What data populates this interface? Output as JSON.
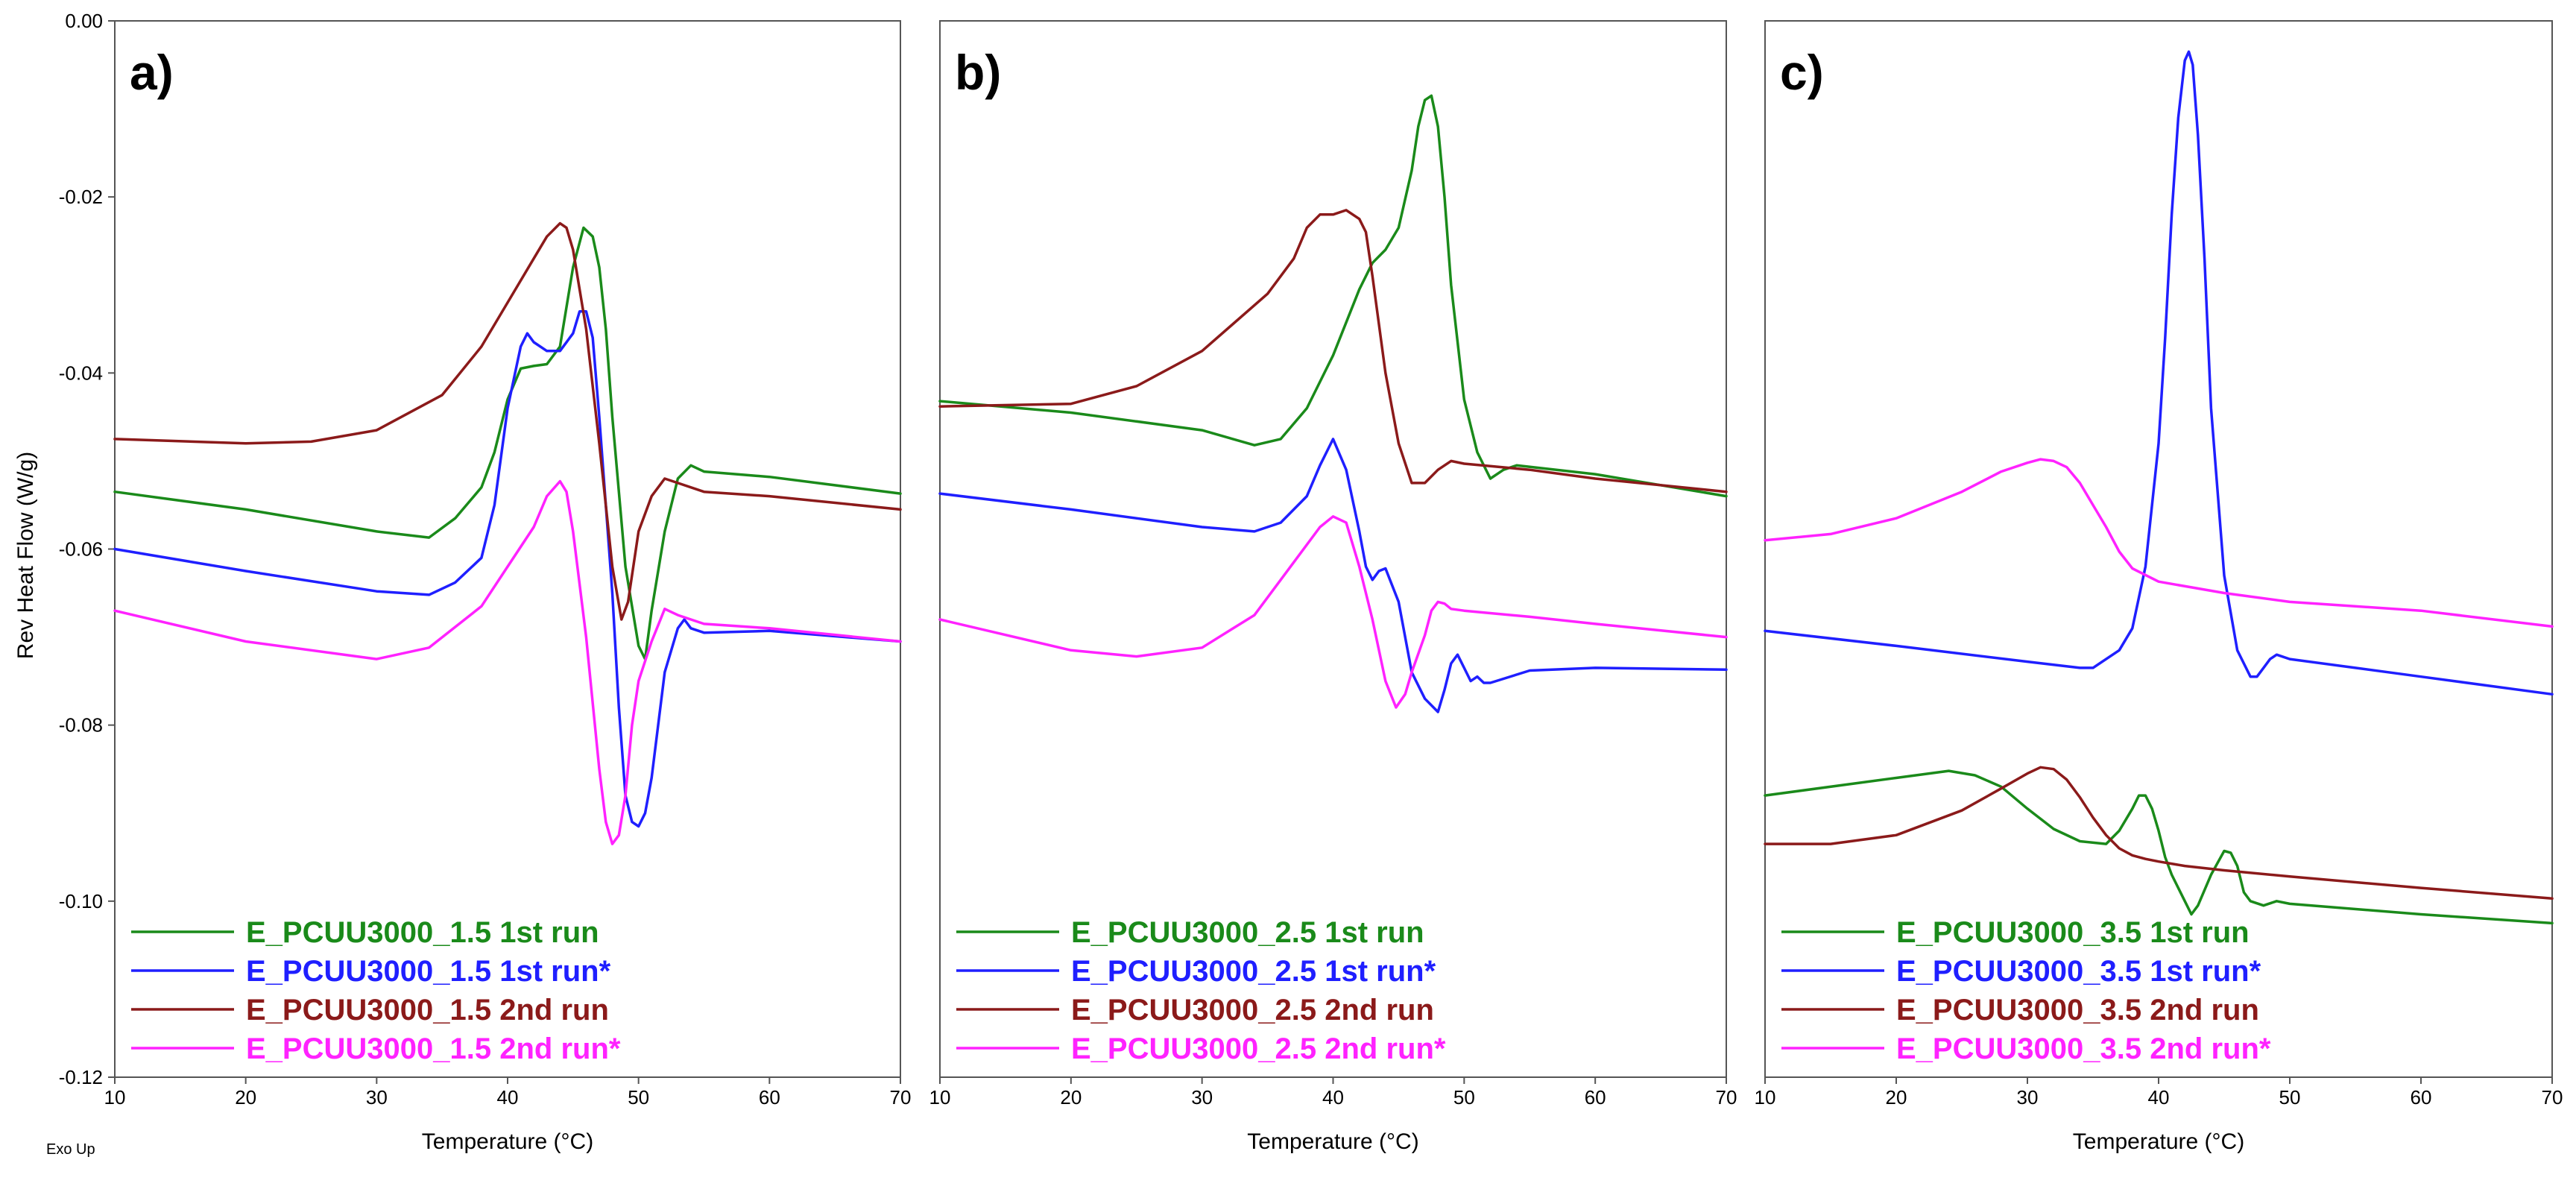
{
  "figure": {
    "ylabel": "Rev Heat Flow (W/g)",
    "exo_label": "Exo Up"
  },
  "colors": {
    "green": "#1a8a1a",
    "blue": "#1f1fff",
    "darkred": "#8b1a1a",
    "magenta": "#ff22ff"
  },
  "chart_data": [
    {
      "type": "line",
      "panel_label": "a)",
      "xlabel": "Temperature (°C)",
      "ylabel": "Rev Heat Flow (W/g)",
      "xlim": [
        10,
        70
      ],
      "ylim": [
        -0.12,
        0.0
      ],
      "xticks": [
        "10",
        "20",
        "30",
        "40",
        "50",
        "60",
        "70"
      ],
      "yticks": [
        "0.00",
        "-0.02",
        "-0.04",
        "-0.06",
        "-0.08",
        "-0.10",
        "-0.12"
      ],
      "legend": "bottom-left",
      "series": [
        {
          "name": "E_PCUU3000_1.5 1st run",
          "color": "green",
          "x": [
            10,
            20,
            30,
            34,
            36,
            38,
            39,
            40,
            41,
            42,
            43,
            44,
            45,
            45.8,
            46.5,
            47,
            47.5,
            48,
            49,
            50,
            50.5,
            51,
            52,
            53,
            54,
            55,
            60,
            70
          ],
          "y": [
            -0.0535,
            -0.0555,
            -0.058,
            -0.0587,
            -0.0565,
            -0.053,
            -0.049,
            -0.043,
            -0.0395,
            -0.0392,
            -0.039,
            -0.037,
            -0.028,
            -0.0235,
            -0.0245,
            -0.028,
            -0.035,
            -0.045,
            -0.062,
            -0.071,
            -0.0725,
            -0.067,
            -0.058,
            -0.052,
            -0.0505,
            -0.0512,
            -0.0518,
            -0.0537
          ]
        },
        {
          "name": "E_PCUU3000_1.5 1st run*",
          "color": "blue",
          "x": [
            10,
            20,
            30,
            34,
            36,
            38,
            39,
            40,
            41,
            41.5,
            42,
            43,
            44,
            45,
            45.5,
            46,
            46.5,
            47,
            48,
            48.5,
            49,
            49.5,
            50,
            50.5,
            51,
            51.5,
            52,
            53,
            53.5,
            54,
            55,
            60,
            70
          ],
          "y": [
            -0.06,
            -0.0625,
            -0.0648,
            -0.0652,
            -0.0638,
            -0.061,
            -0.055,
            -0.044,
            -0.037,
            -0.0355,
            -0.0365,
            -0.0375,
            -0.0375,
            -0.0355,
            -0.033,
            -0.033,
            -0.036,
            -0.045,
            -0.065,
            -0.078,
            -0.088,
            -0.091,
            -0.0915,
            -0.09,
            -0.086,
            -0.08,
            -0.074,
            -0.069,
            -0.068,
            -0.069,
            -0.0695,
            -0.0693,
            -0.0705
          ]
        },
        {
          "name": "E_PCUU3000_1.5 2nd run",
          "color": "darkred",
          "x": [
            10,
            20,
            25,
            30,
            35,
            38,
            40,
            42,
            43,
            44,
            44.5,
            45,
            46,
            47,
            48,
            48.7,
            49.2,
            50,
            51,
            52,
            53,
            55,
            60,
            70
          ],
          "y": [
            -0.0475,
            -0.048,
            -0.0478,
            -0.0465,
            -0.0425,
            -0.037,
            -0.032,
            -0.027,
            -0.0245,
            -0.023,
            -0.0235,
            -0.026,
            -0.035,
            -0.048,
            -0.062,
            -0.068,
            -0.066,
            -0.058,
            -0.054,
            -0.052,
            -0.0525,
            -0.0535,
            -0.054,
            -0.0555
          ]
        },
        {
          "name": "E_PCUU3000_1.5 2nd run*",
          "color": "magenta",
          "x": [
            10,
            20,
            30,
            34,
            38,
            40,
            42,
            43,
            44,
            44.5,
            45,
            46,
            47,
            47.5,
            48,
            48.5,
            49,
            49.5,
            50,
            51,
            52,
            53,
            55,
            60,
            70
          ],
          "y": [
            -0.067,
            -0.0705,
            -0.0725,
            -0.0712,
            -0.0665,
            -0.062,
            -0.0575,
            -0.054,
            -0.0523,
            -0.0535,
            -0.058,
            -0.07,
            -0.085,
            -0.091,
            -0.0935,
            -0.0925,
            -0.088,
            -0.08,
            -0.075,
            -0.0705,
            -0.0668,
            -0.0675,
            -0.0685,
            -0.069,
            -0.0705
          ]
        }
      ]
    },
    {
      "type": "line",
      "panel_label": "b)",
      "xlabel": "Temperature (°C)",
      "ylabel": "",
      "xlim": [
        10,
        70
      ],
      "ylim": [
        -0.12,
        0.0
      ],
      "xticks": [
        "10",
        "20",
        "30",
        "40",
        "50",
        "60",
        "70"
      ],
      "yticks": [],
      "legend": "bottom-left",
      "series": [
        {
          "name": "E_PCUU3000_2.5 1st run",
          "color": "green",
          "x": [
            10,
            20,
            30,
            34,
            36,
            38,
            40,
            42,
            43,
            44,
            45,
            46,
            46.5,
            47,
            47.5,
            48,
            48.5,
            49,
            50,
            51,
            52,
            53,
            54,
            60,
            70
          ],
          "y": [
            -0.0432,
            -0.0445,
            -0.0465,
            -0.0482,
            -0.0475,
            -0.044,
            -0.038,
            -0.0305,
            -0.0275,
            -0.026,
            -0.0235,
            -0.017,
            -0.012,
            -0.009,
            -0.0085,
            -0.012,
            -0.02,
            -0.03,
            -0.043,
            -0.049,
            -0.052,
            -0.051,
            -0.0505,
            -0.0515,
            -0.054
          ]
        },
        {
          "name": "E_PCUU3000_2.5 1st run*",
          "color": "blue",
          "x": [
            10,
            20,
            30,
            34,
            36,
            38,
            39,
            40,
            41,
            42,
            42.5,
            43,
            43.5,
            44,
            45,
            46,
            47,
            48,
            48.5,
            49,
            49.5,
            50,
            50.5,
            51,
            51.5,
            52,
            55,
            60,
            70
          ],
          "y": [
            -0.0537,
            -0.0555,
            -0.0575,
            -0.058,
            -0.057,
            -0.054,
            -0.0505,
            -0.0475,
            -0.051,
            -0.058,
            -0.062,
            -0.0635,
            -0.0625,
            -0.0622,
            -0.066,
            -0.074,
            -0.077,
            -0.0785,
            -0.076,
            -0.073,
            -0.072,
            -0.0735,
            -0.075,
            -0.0745,
            -0.0752,
            -0.0752,
            -0.0738,
            -0.0735,
            -0.0737
          ]
        },
        {
          "name": "E_PCUU3000_2.5 2nd run",
          "color": "darkred",
          "x": [
            10,
            20,
            25,
            30,
            35,
            37,
            38,
            39,
            40,
            41,
            42,
            42.5,
            43,
            44,
            45,
            46,
            47,
            48,
            49,
            50,
            55,
            60,
            70
          ],
          "y": [
            -0.0438,
            -0.0435,
            -0.0415,
            -0.0375,
            -0.031,
            -0.027,
            -0.0235,
            -0.022,
            -0.022,
            -0.0215,
            -0.0225,
            -0.024,
            -0.029,
            -0.04,
            -0.048,
            -0.0525,
            -0.0525,
            -0.051,
            -0.05,
            -0.0503,
            -0.051,
            -0.052,
            -0.0535
          ]
        },
        {
          "name": "E_PCUU3000_2.5 2nd run*",
          "color": "magenta",
          "x": [
            10,
            20,
            25,
            30,
            34,
            37,
            39,
            40,
            41,
            42,
            43,
            44,
            44.8,
            45.5,
            46,
            47,
            47.5,
            48,
            48.5,
            49,
            50,
            55,
            60,
            70
          ],
          "y": [
            -0.068,
            -0.0715,
            -0.0722,
            -0.0712,
            -0.0675,
            -0.0615,
            -0.0575,
            -0.0563,
            -0.057,
            -0.062,
            -0.068,
            -0.075,
            -0.078,
            -0.0765,
            -0.074,
            -0.0698,
            -0.067,
            -0.066,
            -0.0662,
            -0.0668,
            -0.067,
            -0.0677,
            -0.0685,
            -0.07
          ]
        }
      ]
    },
    {
      "type": "line",
      "panel_label": "c)",
      "xlabel": "Temperature (°C)",
      "ylabel": "",
      "xlim": [
        10,
        70
      ],
      "ylim": [
        -0.12,
        0.0
      ],
      "xticks": [
        "10",
        "20",
        "30",
        "40",
        "50",
        "60",
        "70"
      ],
      "yticks": [],
      "legend": "bottom-left",
      "series": [
        {
          "name": "E_PCUU3000_3.5 1st run",
          "color": "green",
          "x": [
            10,
            20,
            24,
            26,
            28,
            30,
            32,
            34,
            36,
            37,
            38,
            38.5,
            39,
            39.5,
            40,
            40.5,
            41,
            42,
            42.5,
            43,
            44,
            45,
            45.5,
            46,
            46.5,
            47,
            48,
            49,
            50,
            60,
            70
          ],
          "y": [
            -0.088,
            -0.086,
            -0.0852,
            -0.0857,
            -0.087,
            -0.0895,
            -0.0918,
            -0.0932,
            -0.0935,
            -0.092,
            -0.0895,
            -0.088,
            -0.088,
            -0.0895,
            -0.092,
            -0.095,
            -0.097,
            -0.1,
            -0.1015,
            -0.1005,
            -0.097,
            -0.0943,
            -0.0945,
            -0.096,
            -0.099,
            -0.1,
            -0.1005,
            -0.1,
            -0.1003,
            -0.1015,
            -0.1025
          ]
        },
        {
          "name": "E_PCUU3000_3.5 1st run*",
          "color": "blue",
          "x": [
            10,
            20,
            30,
            34,
            35,
            37,
            38,
            39,
            40,
            40.5,
            41,
            41.5,
            42,
            42.3,
            42.6,
            43,
            43.5,
            44,
            45,
            46,
            47,
            47.5,
            48,
            48.5,
            49,
            50,
            55,
            60,
            70
          ],
          "y": [
            -0.0693,
            -0.071,
            -0.0728,
            -0.0735,
            -0.0735,
            -0.0715,
            -0.069,
            -0.062,
            -0.048,
            -0.036,
            -0.022,
            -0.011,
            -0.0045,
            -0.0035,
            -0.005,
            -0.013,
            -0.027,
            -0.044,
            -0.063,
            -0.0715,
            -0.0745,
            -0.0745,
            -0.0735,
            -0.0725,
            -0.072,
            -0.0725,
            -0.0735,
            -0.0745,
            -0.0765
          ]
        },
        {
          "name": "E_PCUU3000_3.5 2nd run",
          "color": "darkred",
          "x": [
            10,
            15,
            20,
            25,
            28,
            30,
            31,
            32,
            33,
            34,
            35,
            36,
            37,
            38,
            39,
            40,
            42,
            45,
            50,
            60,
            70
          ],
          "y": [
            -0.0935,
            -0.0935,
            -0.0925,
            -0.0897,
            -0.0872,
            -0.0855,
            -0.0848,
            -0.085,
            -0.0862,
            -0.0882,
            -0.0905,
            -0.0925,
            -0.094,
            -0.0948,
            -0.0952,
            -0.0955,
            -0.096,
            -0.0965,
            -0.0972,
            -0.0985,
            -0.0997
          ]
        },
        {
          "name": "E_PCUU3000_3.5 2nd run*",
          "color": "magenta",
          "x": [
            10,
            15,
            20,
            25,
            28,
            30,
            31,
            32,
            33,
            34,
            35,
            36,
            37,
            38,
            40,
            45,
            50,
            60,
            70
          ],
          "y": [
            -0.059,
            -0.0583,
            -0.0565,
            -0.0535,
            -0.0512,
            -0.0502,
            -0.0498,
            -0.05,
            -0.0507,
            -0.0525,
            -0.055,
            -0.0575,
            -0.0603,
            -0.0622,
            -0.0637,
            -0.065,
            -0.066,
            -0.067,
            -0.0688
          ]
        }
      ]
    }
  ]
}
